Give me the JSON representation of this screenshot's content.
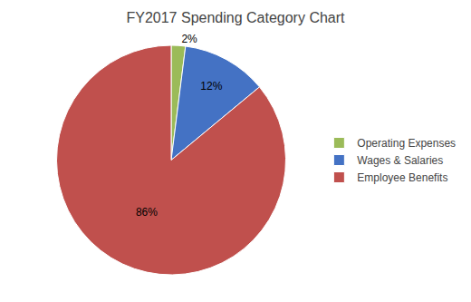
{
  "chart_data": {
    "type": "pie",
    "title": "FY2017 Spending Category Chart",
    "categories": [
      "Operating Expenses",
      "Wages & Salaries",
      "Employee Benefits"
    ],
    "values": [
      2,
      12,
      86
    ],
    "value_labels": [
      "2%",
      "12%",
      "86%"
    ],
    "colors": [
      "#9BBB59",
      "#4472C4",
      "#C0504D"
    ],
    "data_labels": true,
    "legend": "right"
  }
}
